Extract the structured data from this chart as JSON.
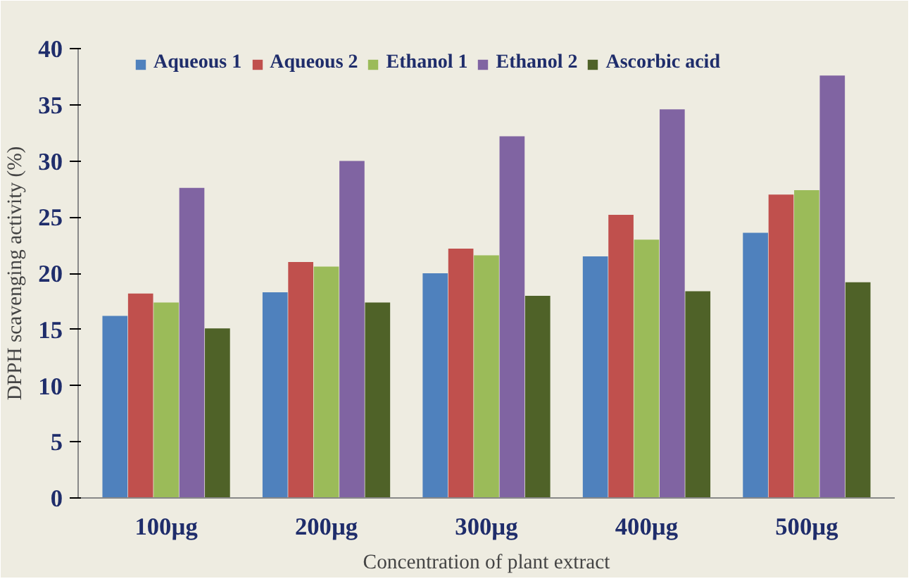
{
  "chart_data": {
    "type": "bar",
    "xlabel": "Concentration of plant extract",
    "ylabel": "DPPH scavenging activity (%)",
    "categories": [
      "100µg",
      "200µg",
      "300µg",
      "400µg",
      "500µg"
    ],
    "series": [
      {
        "name": "Aqueous 1",
        "color": "#4f81bd",
        "values": [
          16.2,
          18.3,
          20.0,
          21.5,
          23.6
        ]
      },
      {
        "name": "Aqueous 2",
        "color": "#c0504d",
        "values": [
          18.2,
          21.0,
          22.2,
          25.2,
          27.0
        ]
      },
      {
        "name": "Ethanol 1",
        "color": "#9bbb59",
        "values": [
          17.4,
          20.6,
          21.6,
          23.0,
          27.4
        ]
      },
      {
        "name": "Ethanol 2",
        "color": "#8064a2",
        "values": [
          27.6,
          30.0,
          32.2,
          34.6,
          37.6
        ]
      },
      {
        "name": "Ascorbic acid",
        "color": "#4f6228",
        "values": [
          15.1,
          17.4,
          18.0,
          18.4,
          19.2
        ]
      }
    ],
    "ylim": [
      0,
      40
    ],
    "yticks": [
      0,
      5,
      10,
      15,
      20,
      25,
      30,
      35,
      40
    ],
    "grid": false,
    "legend": "top"
  }
}
